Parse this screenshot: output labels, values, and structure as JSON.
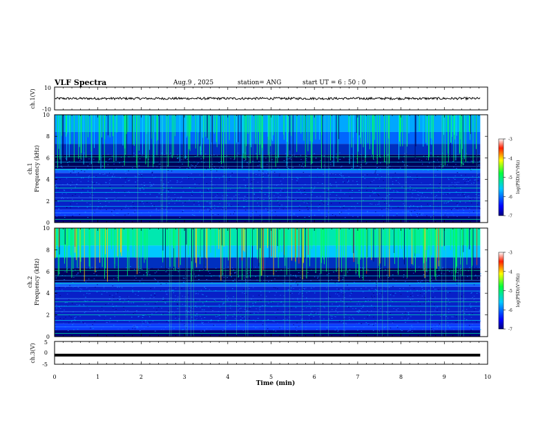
{
  "header": {
    "title": "VLF Spectra",
    "date": "Aug.9  , 2025",
    "station": "station= ANG",
    "start": "start  UT =   6  : 50 : 0"
  },
  "chart_data": [
    {
      "type": "line",
      "name": "ch1-waveform",
      "ylabel": "ch.1(V)",
      "ylim": [
        -10,
        10
      ],
      "yticks": [
        "10",
        "-10"
      ],
      "baseline_value": 0,
      "noise_amplitude": 1
    },
    {
      "type": "heatmap",
      "name": "ch1-spectrogram",
      "ylabel_top": "ch.1",
      "ylabel": "Frequency  (kHz)",
      "ylim": [
        0,
        10
      ],
      "yticks": [
        "0",
        "2",
        "4",
        "6",
        "8",
        "10"
      ],
      "colorbar": {
        "label": "log(PSD)(V²/Hz)",
        "range": [
          -7,
          -3
        ],
        "ticks": [
          "-3",
          "-4",
          "-5",
          "-6",
          "-7"
        ]
      }
    },
    {
      "type": "heatmap",
      "name": "ch2-spectrogram",
      "ylabel_top": "ch.2",
      "ylabel": "Frequency  (kHz)",
      "ylim": [
        0,
        10
      ],
      "yticks": [
        "0",
        "2",
        "4",
        "6",
        "8",
        "10"
      ],
      "colorbar": {
        "label": "log(PSD)(V²/Hz)",
        "range": [
          -7,
          -3
        ],
        "ticks": [
          "-3",
          "-4",
          "-5",
          "-6",
          "-7"
        ]
      }
    },
    {
      "type": "line",
      "name": "ch3-waveform",
      "ylabel": "ch.3(V)",
      "ylim": [
        -5,
        5
      ],
      "yticks": [
        "5",
        "0",
        "-5"
      ],
      "baseline_value": -1
    }
  ],
  "xaxis": {
    "label": "Time  (min)",
    "ticks": [
      "0",
      "1",
      "2",
      "3",
      "4",
      "5",
      "6",
      "7",
      "8",
      "9",
      "10"
    ],
    "data_end_min": 9.83
  }
}
